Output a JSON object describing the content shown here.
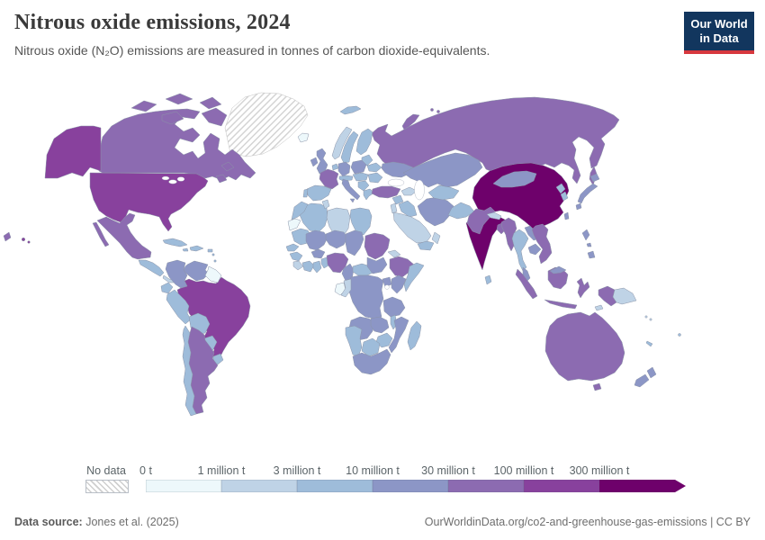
{
  "header": {
    "title": "Nitrous oxide emissions, 2024",
    "subtitle": "Nitrous oxide (N₂O) emissions are measured in tonnes of carbon dioxide-equivalents.",
    "logo": {
      "line1": "Our World",
      "line2": "in Data",
      "bg_color": "#12365e",
      "accent_color": "#d7383e"
    }
  },
  "footer": {
    "source_label": "Data source:",
    "source_value": " Jones et al. (2025)",
    "attribution": "OurWorldinData.org/co2-and-greenhouse-gas-emissions | CC BY"
  },
  "chart_data": {
    "type": "heatmap",
    "variant": "world-choropleth-map",
    "title": "Nitrous oxide emissions, 2024",
    "unit": "tonnes of carbon dioxide-equivalents",
    "no_data_label": "No data",
    "legend_tick_labels": [
      "0 t",
      "1 million t",
      "3 million t",
      "10 million t",
      "30 million t",
      "100 million t",
      "300 million t"
    ],
    "bin_colors": [
      "#edf8fb",
      "#bfd3e6",
      "#9ebcda",
      "#8c96c6",
      "#8c6bb1",
      "#88419d",
      "#6e016b"
    ],
    "bin_ranges": [
      "0 – 1 million t",
      "1 – 3 million t",
      "3 – 10 million t",
      "10 – 30 million t",
      "30 – 100 million t",
      "100 – 300 million t",
      "> 300 million t"
    ],
    "legend_position": "bottom",
    "countries": {
      "greenland": "no-data",
      "canada": 5,
      "usa": 6,
      "mexico": 5,
      "central-america": 3,
      "panama-costa-rica": 2,
      "cuba": 3,
      "hispaniola": 3,
      "jamaica": 3,
      "puerto-rico": 3,
      "lesser-antilles": 3,
      "colombia": 4,
      "venezuela": 4,
      "guyanas": 1,
      "ecuador": 3,
      "peru": 3,
      "brazil": 6,
      "bolivia": 3,
      "paraguay": 3,
      "uruguay": 3,
      "argentina": 5,
      "chile": 3,
      "iceland": 1,
      "ireland": 4,
      "united-kingdom": 4,
      "norway": 2,
      "svalbard": 3,
      "sweden": 3,
      "finland": 3,
      "denmark": 3,
      "baltics": 3,
      "belarus": 3,
      "poland": 4,
      "germany": 4,
      "benelux": 3,
      "france": 5,
      "spain": 3,
      "portugal": 3,
      "italy": 4,
      "switzerland-austria": 3,
      "czechia-hungary": 3,
      "romania": 3,
      "balkans": 3,
      "greece": 3,
      "ukraine": 4,
      "russia": 5,
      "kazakhstan": 4,
      "central-asia": 3,
      "caucasus": 2,
      "turkey": 5,
      "syria": 3,
      "iraq": 3,
      "jordan-israel": 2,
      "saudi-arabia": 2,
      "yemen": 3,
      "oman": 2,
      "iran": 4,
      "afghanistan": 3,
      "pakistan": 5,
      "india": 7,
      "nepal": 2,
      "bangladesh": 5,
      "sri-lanka": 3,
      "china": 7,
      "taiwan": 4,
      "mongolia": 4,
      "north-korea": 3,
      "south-korea": 3,
      "japan": 4,
      "myanmar": 5,
      "thailand": 3,
      "laos": 4,
      "cambodia": 4,
      "vietnam": 5,
      "malaysia": 4,
      "indonesia": 5,
      "timor-leste": 2,
      "philippines": 4,
      "papua-new-guinea": 2,
      "australia": 5,
      "new-zealand": 4,
      "fiji": 3,
      "solomon-islands": 2,
      "new-caledonia": 3,
      "morocco": 3,
      "western-sahara": 1,
      "algeria": 3,
      "tunisia": 2,
      "libya": 2,
      "egypt": 3,
      "mauritania": 3,
      "mali": 4,
      "niger": 4,
      "chad": 4,
      "sudan": 5,
      "south-sudan": 4,
      "eritrea": 2,
      "senegal": 3,
      "guinea": 3,
      "sierra-leone-liberia": 2,
      "cote-divoire": 3,
      "ghana": 3,
      "togo-benin": 3,
      "burkina-faso": 4,
      "nigeria": 5,
      "cameroon": 4,
      "central-african-republic": 3,
      "ethiopia": 5,
      "somalia": 3,
      "kenya": 4,
      "uganda": 4,
      "dr-congo": 4,
      "gabon": 1,
      "congo": 2,
      "tanzania": 4,
      "angola": 4,
      "zambia": 4,
      "malawi": 3,
      "mozambique": 4,
      "zimbabwe": 3,
      "botswana": 3,
      "namibia": 3,
      "south-africa": 4,
      "madagascar": 3
    }
  }
}
